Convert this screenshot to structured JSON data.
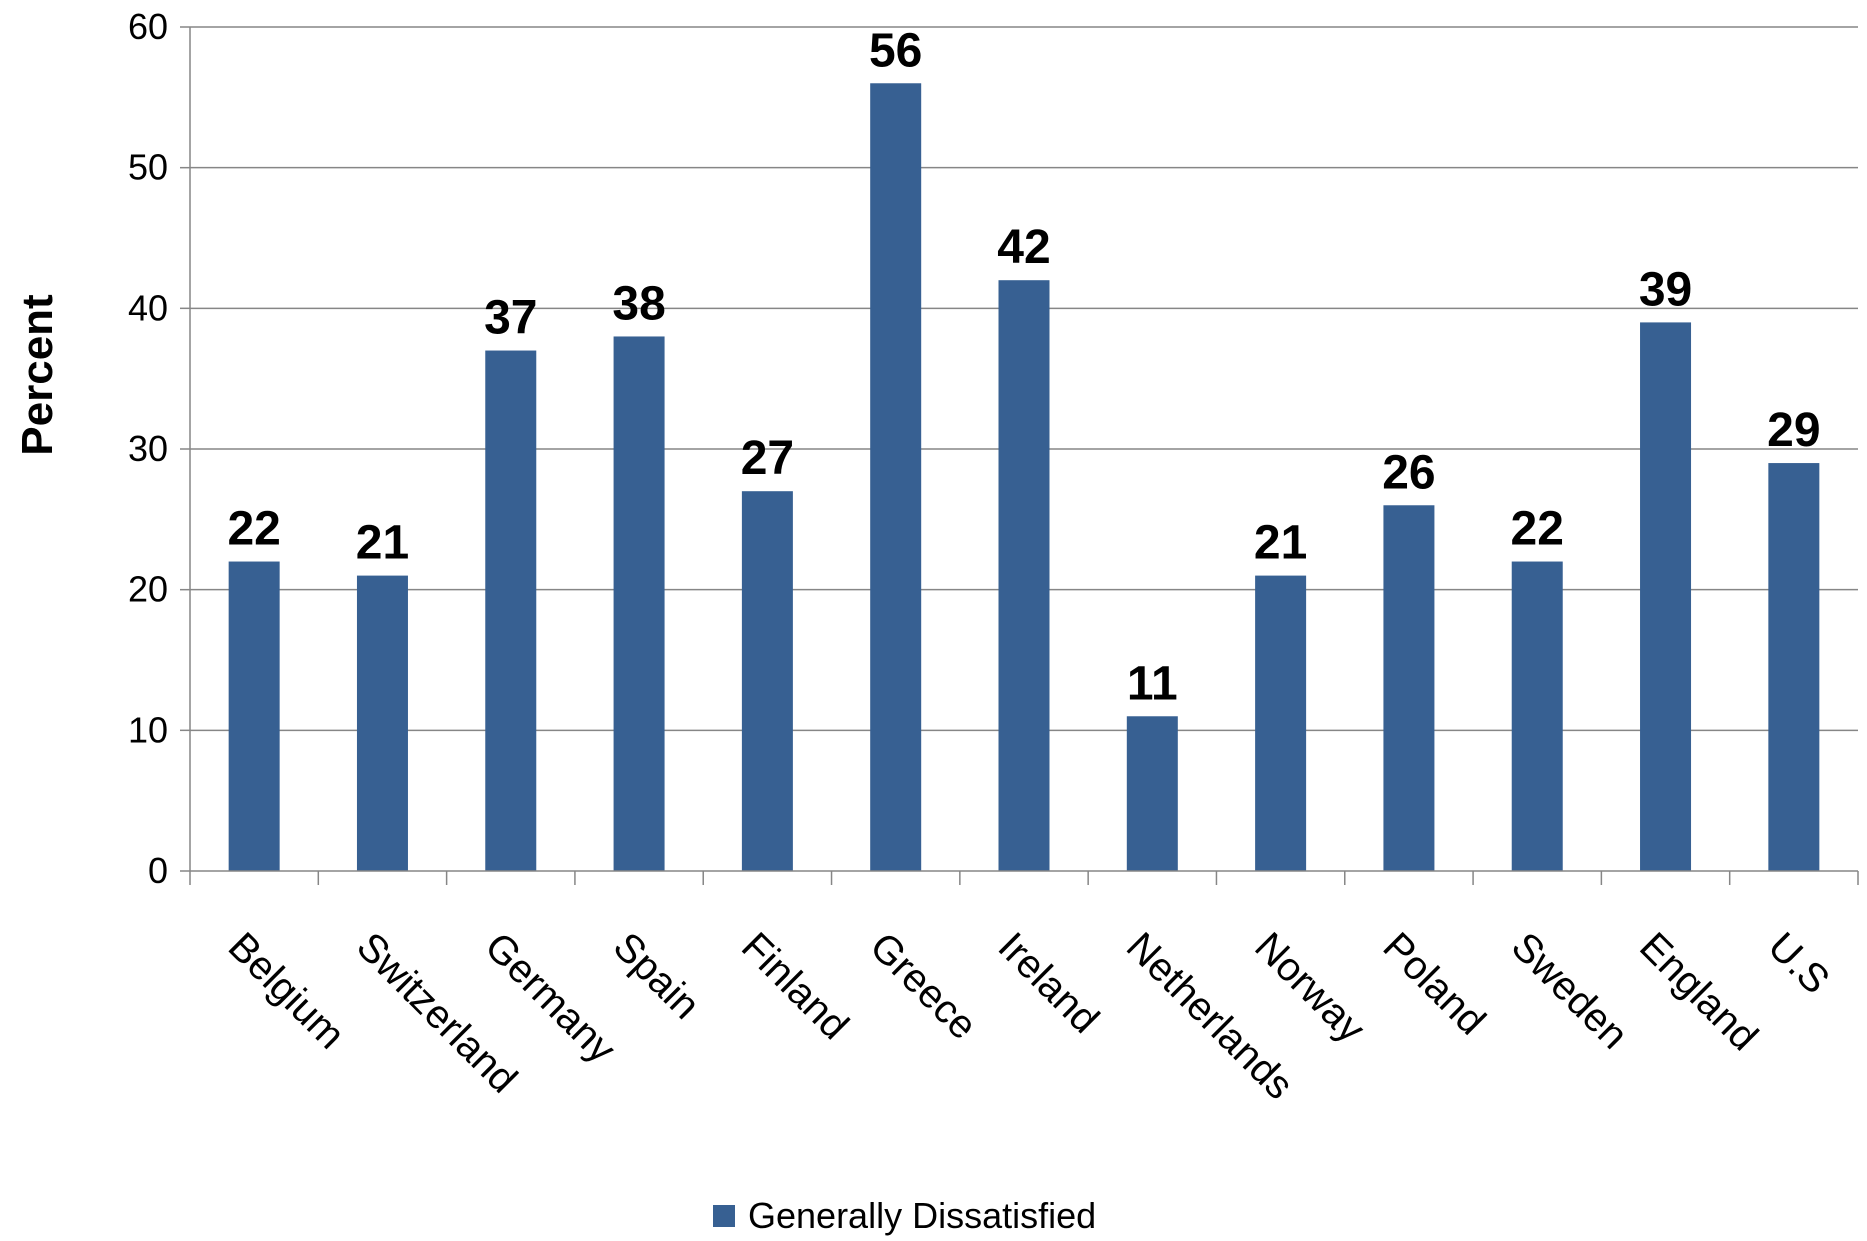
{
  "chart_data": {
    "type": "bar",
    "categories": [
      "Belgium",
      "Switzerland",
      "Germany",
      "Spain",
      "Finland",
      "Greece",
      "Ireland",
      "Netherlands",
      "Norway",
      "Poland",
      "Sweden",
      "England",
      "U.S"
    ],
    "series": [
      {
        "name": "Generally Dissatisfied",
        "values": [
          22,
          21,
          37,
          38,
          27,
          56,
          42,
          11,
          21,
          26,
          22,
          39,
          29
        ],
        "color": "#376092"
      }
    ],
    "ylabel": "Percent",
    "xlabel": "",
    "ylim": [
      0,
      60
    ],
    "yticks": [
      0,
      10,
      20,
      30,
      40,
      50,
      60
    ],
    "grid": true,
    "legend_position": "bottom",
    "data_labels": true
  }
}
